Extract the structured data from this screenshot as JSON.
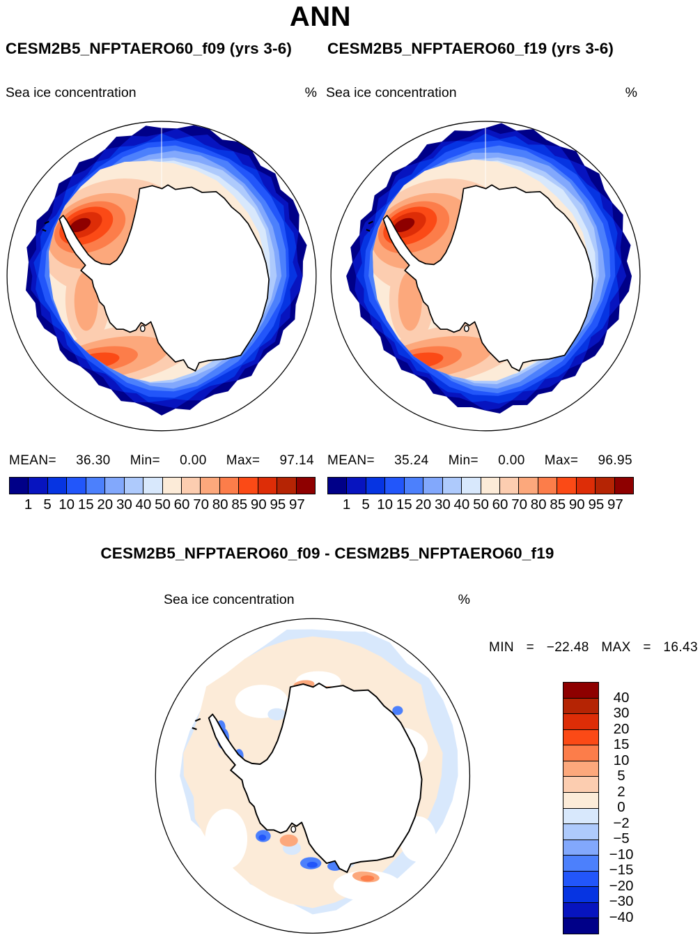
{
  "header": {
    "title": "ANN",
    "subtitle_left": "CESM2B5_NFPTAERO60_f09 (yrs 3-6)",
    "subtitle_right": "CESM2B5_NFPTAERO60_f19 (yrs 3-6)"
  },
  "panels": {
    "left": {
      "field_label": "Sea ice concentration",
      "units": "%",
      "stats": {
        "mean_label": "MEAN=",
        "mean": "36.30",
        "min_label": "Min=",
        "min": "0.00",
        "max_label": "Max=",
        "max": "97.14"
      }
    },
    "right": {
      "field_label": "Sea ice concentration",
      "units": "%",
      "stats": {
        "mean_label": "MEAN=",
        "mean": "35.24",
        "min_label": "Min=",
        "min": "0.00",
        "max_label": "Max=",
        "max": "96.95"
      }
    },
    "diff": {
      "title": "CESM2B5_NFPTAERO60_f09 - CESM2B5_NFPTAERO60_f19",
      "field_label": "Sea ice concentration",
      "units": "%",
      "min_label": "MIN",
      "min_eq": "=",
      "min": "−22.48",
      "max_label": "MAX",
      "max_eq": "=",
      "max": "16.43"
    }
  },
  "chart_data": [
    {
      "type": "heatmap",
      "panel": "f09",
      "projection": "south-polar-stereographic",
      "title": "CESM2B5_NFPTAERO60_f09 (yrs 3-6)",
      "field": "Sea ice concentration",
      "units": "%",
      "stats": {
        "mean": 36.3,
        "min": 0.0,
        "max": 97.14
      },
      "contour_levels": [
        1,
        5,
        10,
        15,
        20,
        30,
        40,
        50,
        60,
        70,
        80,
        85,
        90,
        95,
        97
      ],
      "tick_labels": [
        "1",
        "5",
        "10",
        "15",
        "20",
        "30",
        "40",
        "50",
        "60",
        "70",
        "80",
        "85",
        "90",
        "95",
        "97"
      ],
      "palette": [
        "#000088",
        "#0714BF",
        "#0634E2",
        "#2256FA",
        "#4C80FC",
        "#82A8FC",
        "#AECAFC",
        "#D8E8FC",
        "#FCEBD8",
        "#FCCDB0",
        "#FCA87C",
        "#FC7D4A",
        "#FB4A16",
        "#DD2D07",
        "#B52404",
        "#8E0000"
      ],
      "legend_position": "bottom"
    },
    {
      "type": "heatmap",
      "panel": "f19",
      "projection": "south-polar-stereographic",
      "title": "CESM2B5_NFPTAERO60_f19 (yrs 3-6)",
      "field": "Sea ice concentration",
      "units": "%",
      "stats": {
        "mean": 35.24,
        "min": 0.0,
        "max": 96.95
      },
      "contour_levels": [
        1,
        5,
        10,
        15,
        20,
        30,
        40,
        50,
        60,
        70,
        80,
        85,
        90,
        95,
        97
      ],
      "tick_labels": [
        "1",
        "5",
        "10",
        "15",
        "20",
        "30",
        "40",
        "50",
        "60",
        "70",
        "80",
        "85",
        "90",
        "95",
        "97"
      ],
      "palette": [
        "#000088",
        "#0714BF",
        "#0634E2",
        "#2256FA",
        "#4C80FC",
        "#82A8FC",
        "#AECAFC",
        "#D8E8FC",
        "#FCEBD8",
        "#FCCDB0",
        "#FCA87C",
        "#FC7D4A",
        "#FB4A16",
        "#DD2D07",
        "#B52404",
        "#8E0000"
      ],
      "legend_position": "bottom"
    },
    {
      "type": "heatmap",
      "panel": "difference",
      "projection": "south-polar-stereographic",
      "title": "CESM2B5_NFPTAERO60_f09 - CESM2B5_NFPTAERO60_f19",
      "field": "Sea ice concentration",
      "units": "%",
      "stats": {
        "min": -22.48,
        "max": 16.43
      },
      "contour_levels": [
        -40,
        -30,
        -20,
        -15,
        -10,
        -5,
        -2,
        0,
        2,
        5,
        10,
        15,
        20,
        30,
        40
      ],
      "tick_labels_top_to_bottom": [
        "40",
        "30",
        "20",
        "15",
        "10",
        "5",
        "2",
        "0",
        "−2",
        "−5",
        "−10",
        "−15",
        "−20",
        "−30",
        "−40"
      ],
      "palette_top_to_bottom": [
        "#8E0000",
        "#B52404",
        "#DD2D07",
        "#FB4A16",
        "#FC7D4A",
        "#FCA87C",
        "#FCCDB0",
        "#FCEBD8",
        "#D8E8FC",
        "#AECAFC",
        "#82A8FC",
        "#4C80FC",
        "#2256FA",
        "#0634E2",
        "#0714BF",
        "#000088"
      ],
      "legend_position": "right"
    }
  ]
}
